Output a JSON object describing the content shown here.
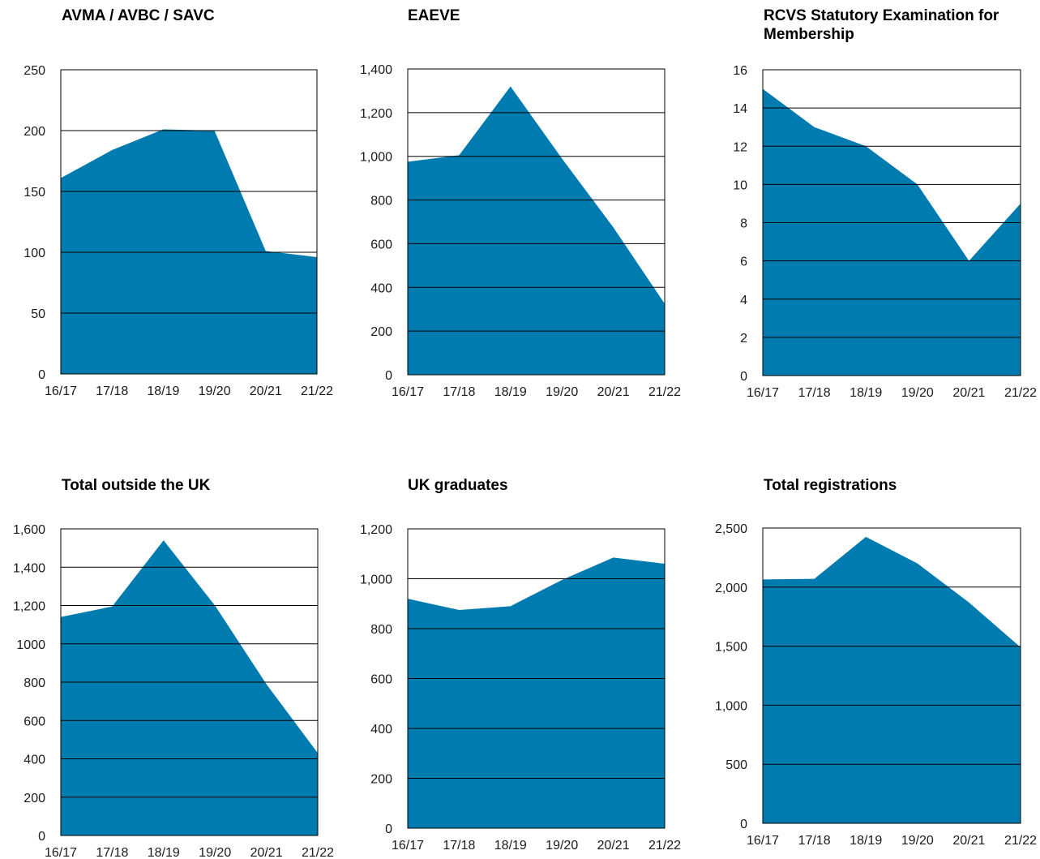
{
  "chart_data": [
    {
      "type": "area",
      "title": "AVMA / AVBC / SAVC",
      "categories": [
        "16/17",
        "17/18",
        "18/19",
        "19/20",
        "20/21",
        "21/22"
      ],
      "yticks": [
        "0",
        "50",
        "100",
        "150",
        "200",
        "250"
      ],
      "ylim": [
        0,
        250
      ],
      "values": [
        161,
        184,
        201,
        200,
        101,
        96
      ],
      "color": "#007bb0",
      "grid": true
    },
    {
      "type": "area",
      "title": "EAEVE",
      "categories": [
        "16/17",
        "17/18",
        "18/19",
        "19/20",
        "20/21",
        "21/22"
      ],
      "yticks": [
        "0",
        "200",
        "400",
        "600",
        "800",
        "1,000",
        "1,200",
        "1,400"
      ],
      "ylim": [
        0,
        1400
      ],
      "values": [
        975,
        1005,
        1320,
        990,
        675,
        325
      ],
      "color": "#007bb0",
      "grid": true
    },
    {
      "type": "area",
      "title": "RCVS Statutory Examination for Membership",
      "categories": [
        "16/17",
        "17/18",
        "18/19",
        "19/20",
        "20/21",
        "21/22"
      ],
      "yticks": [
        "0",
        "2",
        "4",
        "6",
        "8",
        "10",
        "12",
        "14",
        "16"
      ],
      "ylim": [
        0,
        16
      ],
      "values": [
        15,
        13,
        12,
        10,
        6,
        9
      ],
      "color": "#007bb0",
      "grid": true
    },
    {
      "type": "area",
      "title": "Total outside the UK",
      "categories": [
        "16/17",
        "17/18",
        "18/19",
        "19/20",
        "20/21",
        "21/22"
      ],
      "yticks": [
        "0",
        "200",
        "400",
        "600",
        "800",
        "1000",
        "1,200",
        "1,400",
        "1,600"
      ],
      "ylim": [
        0,
        1600
      ],
      "values": [
        1140,
        1195,
        1540,
        1200,
        790,
        430
      ],
      "color": "#007bb0",
      "grid": true
    },
    {
      "type": "area",
      "title": "UK graduates",
      "categories": [
        "16/17",
        "17/18",
        "18/19",
        "19/20",
        "20/21",
        "21/22"
      ],
      "yticks": [
        "0",
        "200",
        "400",
        "600",
        "800",
        "1,000",
        "1,200"
      ],
      "ylim": [
        0,
        1200
      ],
      "values": [
        920,
        875,
        890,
        995,
        1085,
        1060
      ],
      "color": "#007bb0",
      "grid": true
    },
    {
      "type": "area",
      "title": "Total registrations",
      "categories": [
        "16/17",
        "17/18",
        "18/19",
        "19/20",
        "20/21",
        "21/22"
      ],
      "yticks": [
        "0",
        "500",
        "1,000",
        "1,500",
        "2,000",
        "2,500"
      ],
      "ylim": [
        0,
        2500
      ],
      "values": [
        2065,
        2070,
        2425,
        2200,
        1870,
        1490
      ],
      "color": "#007bb0",
      "grid": true
    }
  ]
}
